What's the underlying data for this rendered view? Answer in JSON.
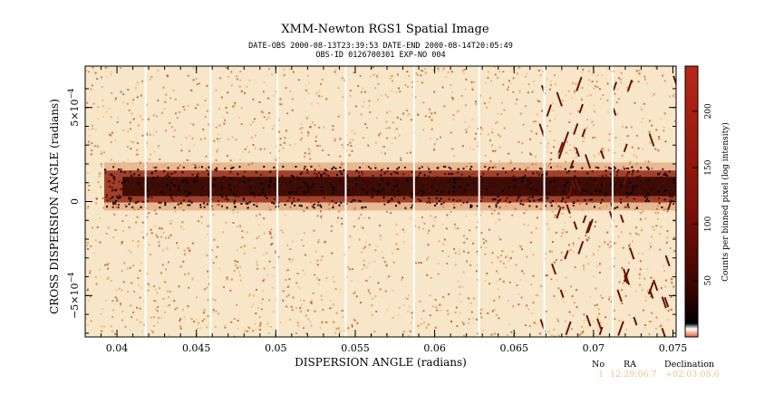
{
  "chart_data": {
    "type": "heatmap",
    "title": "XMM-Newton  RGS1 Spatial Image",
    "header_line1": "DATE-OBS 2000-08-13T23:39:53   DATE-END 2000-08-14T20:05:49",
    "header_line2": "OBS-ID 0126700301 EXP-NO 004",
    "xlabel": "DISPERSION ANGLE (radians)",
    "ylabel": "CROSS DISPERSION ANGLE (radians)",
    "xlim": [
      0.038,
      0.0752
    ],
    "ylim": [
      -0.00072,
      0.00072
    ],
    "x_ticks": [
      0.04,
      0.045,
      0.05,
      0.055,
      0.06,
      0.065,
      0.07,
      0.075
    ],
    "x_tick_labels": [
      "0.04",
      "0.045",
      "0.05",
      "0.055",
      "0.06",
      "0.065",
      "0.07",
      "0.075"
    ],
    "y_ticks": [
      {
        "value": 0.0005,
        "mantissa": "5",
        "exponent": "−4",
        "sign": ""
      },
      {
        "value": 0,
        "label": "0"
      },
      {
        "value": -0.0005,
        "mantissa": "5",
        "exponent": "−4",
        "sign": "−"
      }
    ],
    "y_tick_multiplier": "×10",
    "spectrum_center": 8e-05,
    "spectrum_halfwidth": 8.5e-05,
    "chip_gaps": [
      0.0418,
      0.0459,
      0.0501,
      0.0544,
      0.0587,
      0.0628,
      0.0669,
      0.0712
    ],
    "colorbar": {
      "label": "Counts per binned pixel (log intensity)",
      "ticks": [
        50,
        100,
        150,
        200
      ],
      "range": [
        0,
        240
      ],
      "colors": [
        "#ffffff",
        "#f5e0bd",
        "#e8a15d",
        "#c85a1a",
        "#8a1a0a",
        "#3a0500",
        "#000000"
      ]
    },
    "grid": false
  },
  "source_table": {
    "headers": [
      "No",
      "RA",
      "Declination"
    ],
    "rows": [
      [
        "1",
        "12:29:06.7",
        "+02:03:08.6"
      ]
    ]
  }
}
